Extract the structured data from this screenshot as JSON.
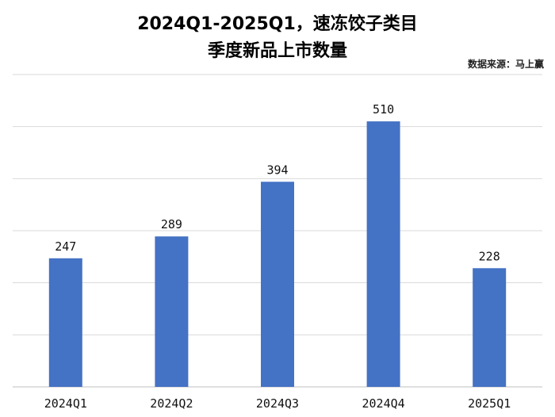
{
  "chart_data": {
    "type": "bar",
    "title": "2024Q1-2025Q1，速冻饺子类目",
    "subtitle": "季度新品上市数量",
    "source": "数据来源：马上赢",
    "categories": [
      "2024Q1",
      "2024Q2",
      "2024Q3",
      "2024Q4",
      "2025Q1"
    ],
    "values": [
      247,
      289,
      394,
      510,
      228
    ],
    "ylim": [
      0,
      600
    ],
    "grid": true,
    "bar_color": "#4472C4",
    "grid_color": "#D9D9D9"
  }
}
